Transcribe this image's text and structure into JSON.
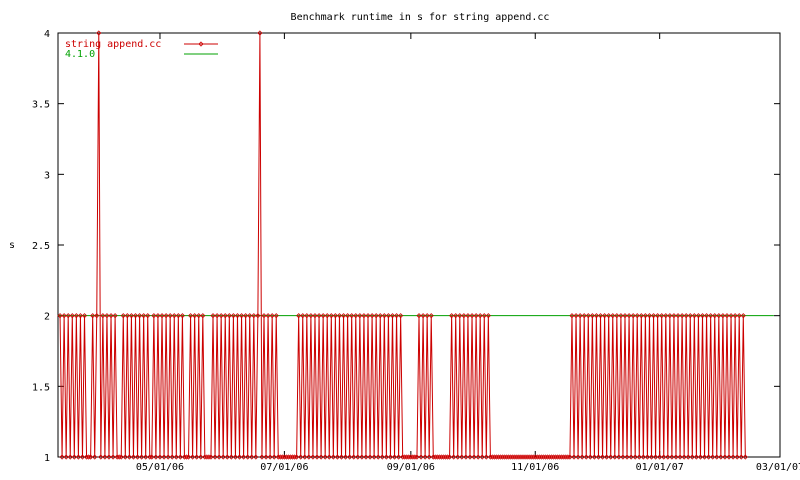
{
  "chart_data": {
    "type": "line",
    "title": "Benchmark runtime in s for string append.cc",
    "xlabel": "",
    "ylabel": "s",
    "x_axis": {
      "type": "date",
      "range": [
        "2006-03-12",
        "2007-03-01"
      ],
      "ticks": [
        {
          "date": "2006-05-01",
          "label": "05/01/06"
        },
        {
          "date": "2006-07-01",
          "label": "07/01/06"
        },
        {
          "date": "2006-09-01",
          "label": "09/01/06"
        },
        {
          "date": "2006-11-01",
          "label": "11/01/06"
        },
        {
          "date": "2007-01-01",
          "label": "01/01/07"
        },
        {
          "date": "2007-03-01",
          "label": "03/01/07"
        }
      ]
    },
    "y_axis": {
      "range": [
        1,
        4
      ],
      "ticks": [
        {
          "value": 1,
          "label": "1"
        },
        {
          "value": 1.5,
          "label": "1.5"
        },
        {
          "value": 2,
          "label": "2"
        },
        {
          "value": 2.5,
          "label": "2.5"
        },
        {
          "value": 3,
          "label": "3"
        },
        {
          "value": 3.5,
          "label": "3.5"
        },
        {
          "value": 4,
          "label": "4"
        }
      ]
    },
    "grid": false,
    "legend_position": "top-left",
    "series": [
      {
        "name": "string append.cc",
        "color": "#cc0000",
        "marker": "diamond",
        "x_start": "2006-03-13",
        "x_step_days": 1,
        "values": [
          2,
          1,
          2,
          1,
          2,
          1,
          2,
          1,
          2,
          1,
          2,
          1,
          2,
          1,
          1,
          1,
          2,
          1,
          2,
          4,
          1,
          2,
          1,
          2,
          1,
          2,
          1,
          2,
          1,
          1,
          1,
          2,
          1,
          2,
          1,
          2,
          1,
          2,
          1,
          2,
          1,
          2,
          1,
          2,
          1,
          1,
          2,
          1,
          2,
          1,
          2,
          1,
          2,
          1,
          2,
          1,
          2,
          1,
          2,
          1,
          2,
          1,
          1,
          1,
          2,
          1,
          2,
          1,
          2,
          1,
          2,
          1,
          1,
          1,
          1,
          2,
          1,
          2,
          1,
          2,
          1,
          2,
          1,
          2,
          1,
          2,
          1,
          2,
          1,
          2,
          1,
          2,
          1,
          2,
          1,
          2,
          1,
          2,
          4,
          1,
          2,
          1,
          2,
          1,
          2,
          1,
          2,
          1,
          1,
          1,
          1,
          1,
          1,
          1,
          1,
          1,
          1,
          2,
          1,
          2,
          1,
          2,
          1,
          2,
          1,
          2,
          1,
          2,
          1,
          2,
          1,
          2,
          1,
          2,
          1,
          2,
          1,
          2,
          1,
          2,
          1,
          2,
          1,
          2,
          1,
          2,
          1,
          2,
          1,
          2,
          1,
          2,
          1,
          2,
          1,
          2,
          1,
          2,
          1,
          2,
          1,
          2,
          1,
          2,
          1,
          2,
          1,
          2,
          1,
          1,
          1,
          1,
          1,
          1,
          1,
          1,
          2,
          1,
          2,
          1,
          2,
          1,
          2,
          1,
          1,
          1,
          1,
          1,
          1,
          1,
          1,
          1,
          2,
          1,
          2,
          1,
          2,
          1,
          2,
          1,
          2,
          1,
          2,
          1,
          2,
          1,
          2,
          1,
          2,
          1,
          2,
          1,
          1,
          1,
          1,
          1,
          1,
          1,
          1,
          1,
          1,
          1,
          1,
          1,
          1,
          1,
          1,
          1,
          1,
          1,
          1,
          1,
          1,
          1,
          1,
          1,
          1,
          1,
          1,
          1,
          1,
          1,
          1,
          1,
          1,
          1,
          1,
          1,
          1,
          1,
          1,
          2,
          1,
          2,
          1,
          2,
          1,
          2,
          1,
          2,
          1,
          2,
          1,
          2,
          1,
          2,
          1,
          2,
          1,
          2,
          1,
          2,
          1,
          2,
          1,
          2,
          1,
          2,
          1,
          2,
          1,
          2,
          1,
          2,
          1,
          2,
          1,
          2,
          1,
          2,
          1,
          2,
          1,
          2,
          1,
          2,
          1,
          2,
          1,
          2,
          1,
          2,
          1,
          2,
          1,
          2,
          1,
          2,
          1,
          2,
          1,
          2,
          1,
          2,
          1,
          2,
          1,
          2,
          1,
          2,
          1,
          2,
          1,
          2,
          1,
          2,
          1,
          2,
          1,
          2,
          1,
          2,
          1,
          2,
          1,
          2,
          1
        ]
      },
      {
        "name": "4.1.0",
        "color": "#00a000",
        "marker": "none",
        "x": [
          "2006-03-12",
          "2007-02-26"
        ],
        "values": [
          2,
          2
        ]
      }
    ]
  }
}
